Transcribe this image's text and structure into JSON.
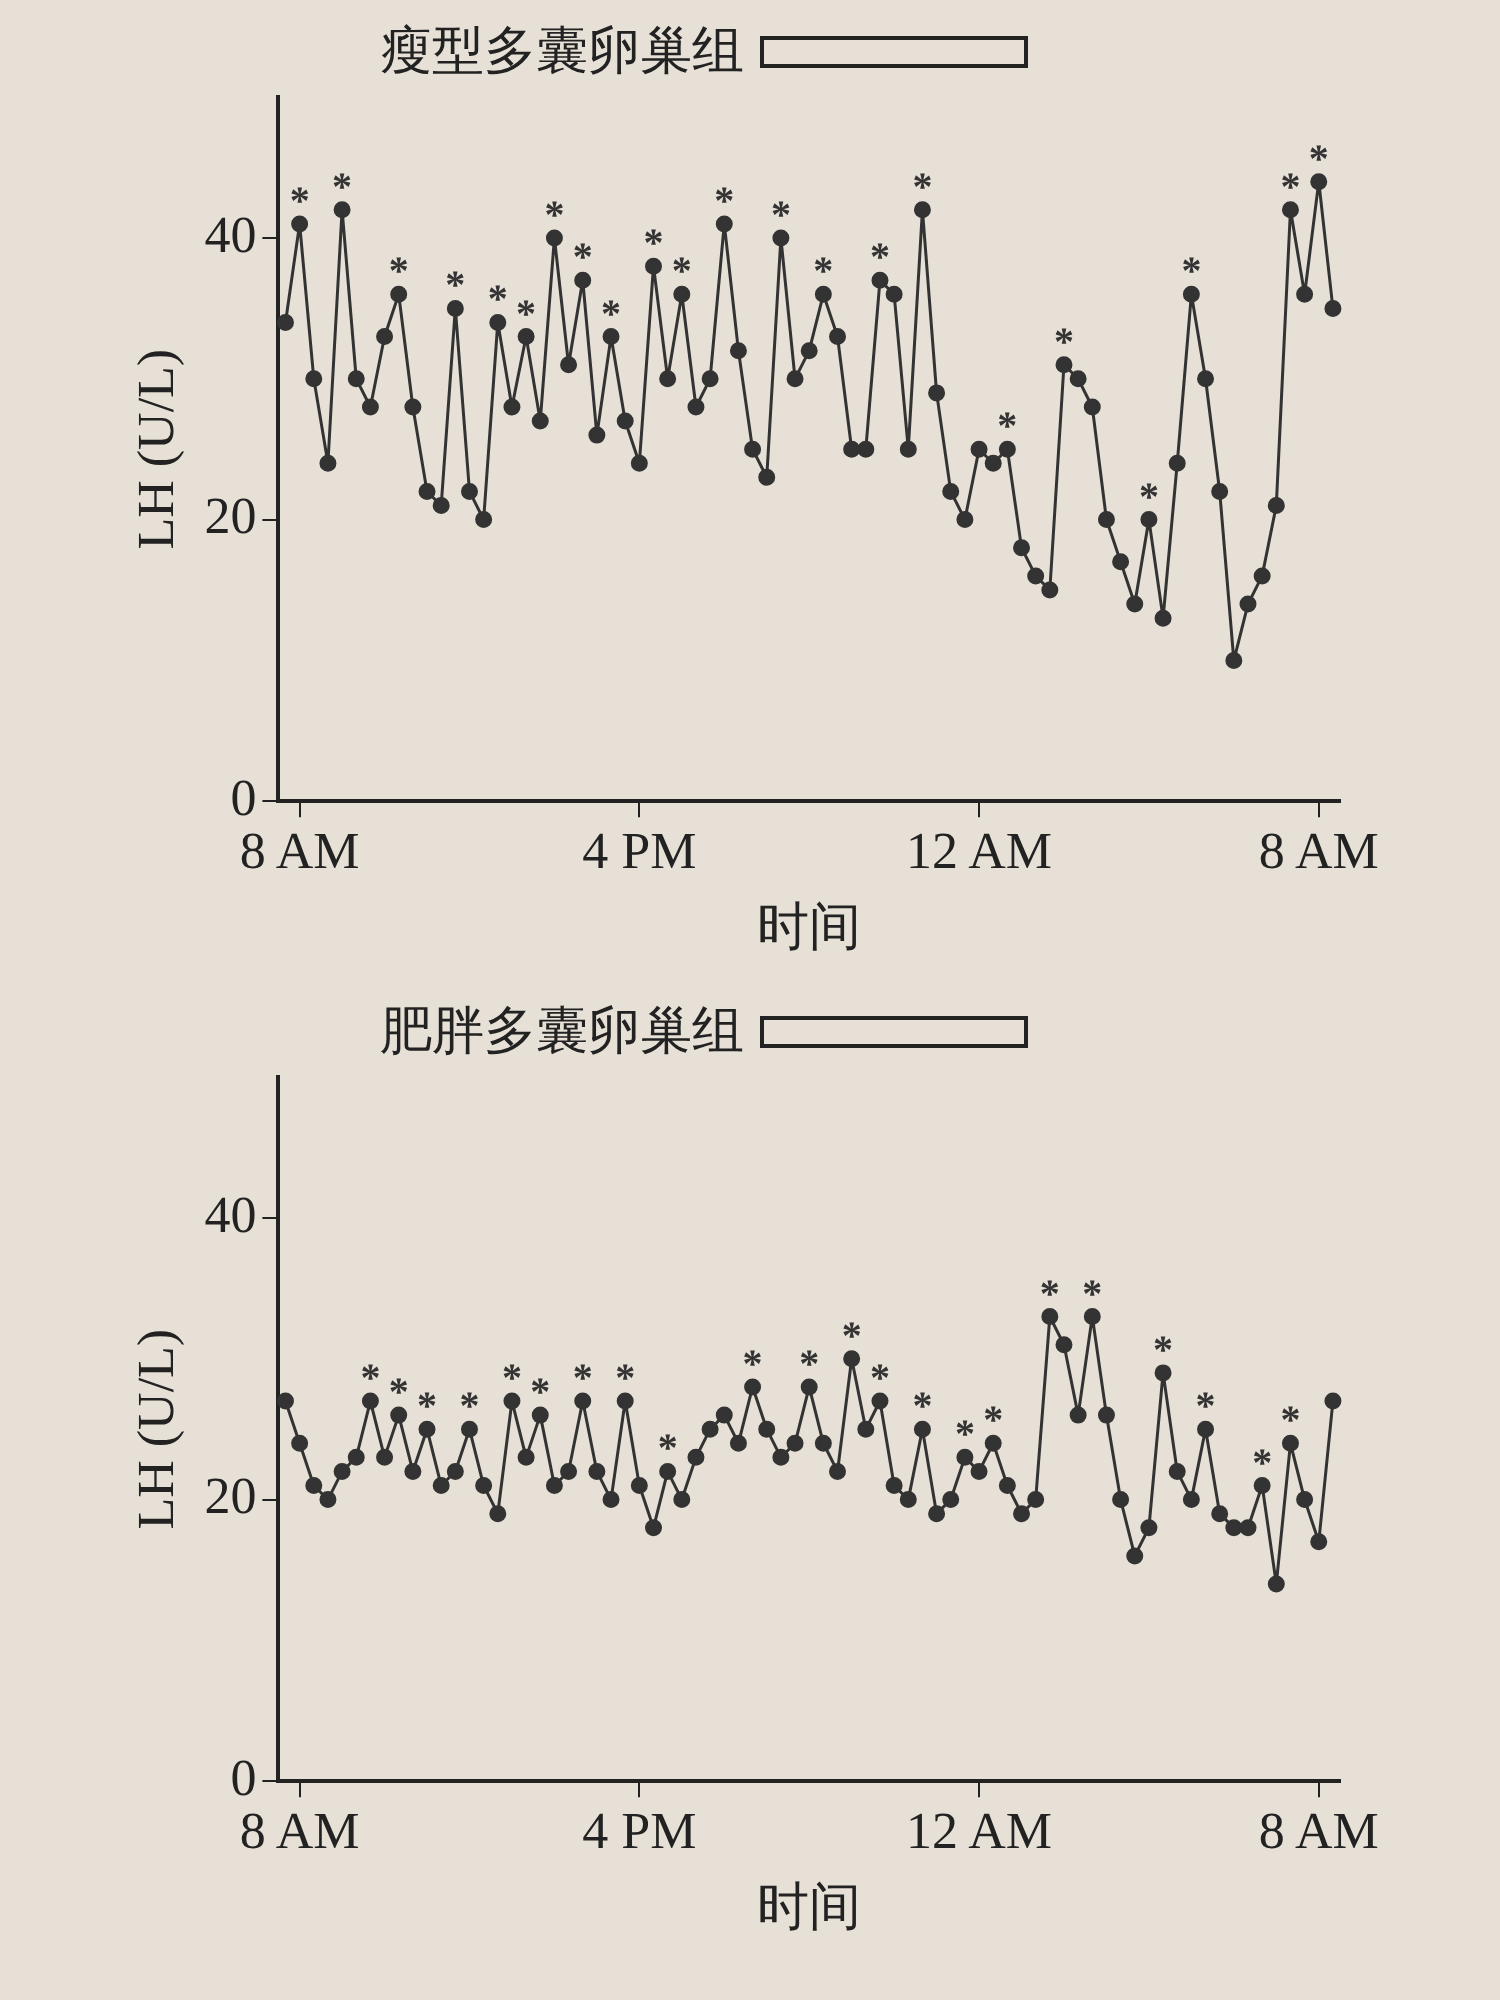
{
  "chart_data": [
    {
      "type": "line",
      "title": "瘦型多囊卵巢组",
      "xlabel": "时间",
      "ylabel": "LH (U/L)",
      "marker": "circle",
      "line_style": "solid",
      "categories": [
        null,
        "8 AM",
        null,
        null,
        null,
        null,
        null,
        null,
        null,
        null,
        null,
        null,
        null,
        null,
        null,
        null,
        null,
        null,
        null,
        null,
        null,
        null,
        null,
        null,
        null,
        "4 PM",
        null,
        null,
        null,
        null,
        null,
        null,
        null,
        null,
        null,
        null,
        null,
        null,
        null,
        null,
        null,
        null,
        null,
        null,
        null,
        null,
        null,
        null,
        null,
        "12 AM",
        null,
        null,
        null,
        null,
        null,
        null,
        null,
        null,
        null,
        null,
        null,
        null,
        null,
        null,
        null,
        null,
        null,
        null,
        null,
        null,
        null,
        null,
        null,
        "8 AM",
        null
      ],
      "series": [
        {
          "color": "#333333",
          "values": [
            34,
            41,
            30,
            24,
            42,
            30,
            28,
            33,
            36,
            28,
            22,
            21,
            35,
            22,
            20,
            34,
            28,
            33,
            27,
            40,
            31,
            37,
            26,
            33,
            27,
            24,
            38,
            30,
            36,
            28,
            30,
            41,
            32,
            25,
            23,
            40,
            30,
            32,
            36,
            33,
            25,
            25,
            37,
            36,
            25,
            42,
            29,
            22,
            20,
            25,
            24,
            25,
            18,
            16,
            15,
            31,
            30,
            28,
            20,
            17,
            14,
            20,
            13,
            24,
            36,
            30,
            22,
            10,
            14,
            16,
            21,
            42,
            36,
            44,
            35
          ],
          "value_labels": [
            null,
            "*",
            null,
            null,
            "*",
            null,
            null,
            null,
            "*",
            null,
            null,
            null,
            "*",
            null,
            null,
            "*",
            null,
            "*",
            null,
            "*",
            null,
            "*",
            null,
            "*",
            null,
            null,
            "*",
            null,
            "*",
            null,
            null,
            "*",
            null,
            null,
            null,
            "*",
            null,
            null,
            "*",
            null,
            null,
            null,
            "*",
            null,
            null,
            "*",
            null,
            null,
            null,
            null,
            null,
            "*",
            null,
            null,
            null,
            "*",
            null,
            null,
            null,
            null,
            null,
            "*",
            null,
            null,
            "*",
            null,
            null,
            null,
            null,
            null,
            null,
            "*",
            null,
            "*",
            null
          ]
        }
      ],
      "ylim": [
        0,
        50
      ],
      "yticks": [
        0,
        20,
        40
      ]
    },
    {
      "type": "line",
      "title": "肥胖多囊卵巢组",
      "xlabel": "时间",
      "ylabel": "LH (U/L)",
      "marker": "circle",
      "line_style": "solid",
      "categories": [
        null,
        "8 AM",
        null,
        null,
        null,
        null,
        null,
        null,
        null,
        null,
        null,
        null,
        null,
        null,
        null,
        null,
        null,
        null,
        null,
        null,
        null,
        null,
        null,
        null,
        null,
        "4 PM",
        null,
        null,
        null,
        null,
        null,
        null,
        null,
        null,
        null,
        null,
        null,
        null,
        null,
        null,
        null,
        null,
        null,
        null,
        null,
        null,
        null,
        null,
        null,
        "12 AM",
        null,
        null,
        null,
        null,
        null,
        null,
        null,
        null,
        null,
        null,
        null,
        null,
        null,
        null,
        null,
        null,
        null,
        null,
        null,
        null,
        null,
        null,
        null,
        "8 AM",
        null
      ],
      "series": [
        {
          "color": "#333333",
          "values": [
            27,
            24,
            21,
            20,
            22,
            23,
            27,
            23,
            26,
            22,
            25,
            21,
            22,
            25,
            21,
            19,
            27,
            23,
            26,
            21,
            22,
            27,
            22,
            20,
            27,
            21,
            18,
            22,
            20,
            23,
            25,
            26,
            24,
            28,
            25,
            23,
            24,
            28,
            24,
            22,
            30,
            25,
            27,
            21,
            20,
            25,
            19,
            20,
            23,
            22,
            24,
            21,
            19,
            20,
            33,
            31,
            26,
            33,
            26,
            20,
            16,
            18,
            29,
            22,
            20,
            25,
            19,
            18,
            18,
            21,
            14,
            24,
            20,
            17,
            27
          ],
          "value_labels": [
            null,
            null,
            null,
            null,
            null,
            null,
            "*",
            null,
            "*",
            null,
            "*",
            null,
            null,
            "*",
            null,
            null,
            "*",
            null,
            "*",
            null,
            null,
            "*",
            null,
            null,
            "*",
            null,
            null,
            "*",
            null,
            null,
            null,
            null,
            null,
            "*",
            null,
            null,
            null,
            "*",
            null,
            null,
            "*",
            null,
            "*",
            null,
            null,
            "*",
            null,
            null,
            "*",
            null,
            "*",
            null,
            null,
            null,
            "*",
            null,
            null,
            "*",
            null,
            null,
            null,
            null,
            "*",
            null,
            null,
            "*",
            null,
            null,
            null,
            "*",
            null,
            "*",
            null,
            null,
            null
          ]
        }
      ],
      "ylim": [
        0,
        50
      ],
      "yticks": [
        0,
        20,
        40
      ]
    }
  ]
}
